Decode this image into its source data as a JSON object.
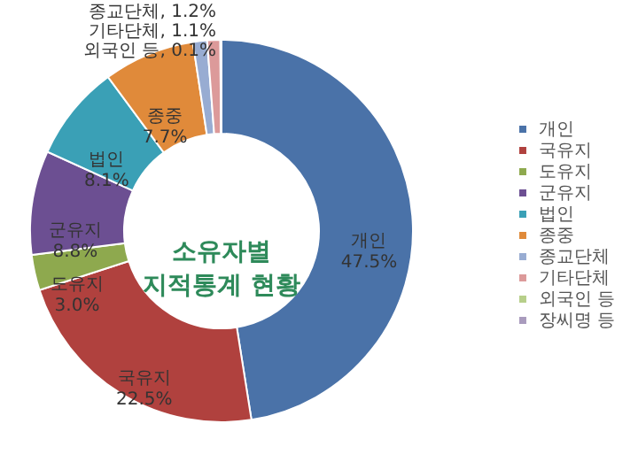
{
  "chart_data": {
    "type": "donut",
    "title": "소유자별\n지적통계 현황",
    "categories": [
      "개인",
      "국유지",
      "도유지",
      "군유지",
      "법인",
      "종중",
      "종교단체",
      "기타단체",
      "외국인 등",
      "장씨명 등"
    ],
    "values": [
      47.5,
      22.5,
      3.0,
      8.8,
      8.1,
      7.7,
      1.2,
      1.1,
      0.1,
      0
    ],
    "value_labels": [
      "47.5%",
      "22.5%",
      "3.0%",
      "8.8%",
      "8.1%",
      "7.7%",
      "종교단체, 1.2%",
      "기타단체, 1.1%",
      "외국인 등, 0.1%",
      null
    ],
    "colors": [
      "#4a72a8",
      "#b0413e",
      "#8ea94e",
      "#6c4f92",
      "#3aa0b6",
      "#e08a3a",
      "#98acd2",
      "#dc9a9a",
      "#b7cf8a",
      "#a99bbd"
    ],
    "legend": "right"
  }
}
